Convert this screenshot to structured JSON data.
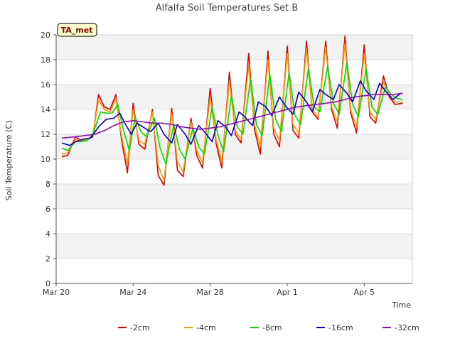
{
  "chart_data": {
    "type": "line",
    "title": "Alfalfa Soil Temperatures Set B",
    "xlabel": "Time",
    "ylabel": "Soil Temperature (C)",
    "badge": "TA_met",
    "xlim_days": [
      0,
      18.5
    ],
    "ylim": [
      0,
      20
    ],
    "y_ticks": [
      0,
      2,
      4,
      6,
      8,
      10,
      12,
      14,
      16,
      18,
      20
    ],
    "x_ticks": [
      {
        "day": 0,
        "label": "Mar 20"
      },
      {
        "day": 4,
        "label": "Mar 24"
      },
      {
        "day": 8,
        "label": "Mar 28"
      },
      {
        "day": 12,
        "label": "Apr 1"
      },
      {
        "day": 16,
        "label": "Apr 5"
      }
    ],
    "grid": "horizontal bands",
    "legend_position": "bottom",
    "series": [
      {
        "name": "-2cm",
        "color": "#dd0000",
        "x": [
          0.3,
          0.6,
          1.0,
          1.3,
          1.6,
          1.9,
          2.2,
          2.5,
          2.8,
          3.1,
          3.4,
          3.7,
          4.0,
          4.3,
          4.6,
          5.0,
          5.3,
          5.6,
          6.0,
          6.3,
          6.6,
          7.0,
          7.3,
          7.6,
          8.0,
          8.3,
          8.6,
          9.0,
          9.3,
          9.6,
          10.0,
          10.3,
          10.6,
          11.0,
          11.3,
          11.6,
          12.0,
          12.3,
          12.6,
          13.0,
          13.3,
          13.6,
          14.0,
          14.3,
          14.6,
          15.0,
          15.3,
          15.6,
          16.0,
          16.3,
          16.6,
          17.0,
          17.3,
          17.6,
          18.0
        ],
        "y": [
          10.2,
          10.3,
          11.8,
          11.5,
          11.6,
          11.8,
          15.2,
          14.2,
          14.0,
          15.2,
          11.5,
          8.9,
          14.5,
          11.2,
          10.8,
          14.0,
          8.7,
          7.9,
          14.1,
          9.1,
          8.6,
          13.3,
          10.3,
          9.3,
          15.7,
          11.3,
          9.3,
          17.0,
          12.0,
          11.3,
          18.5,
          12.4,
          10.4,
          18.7,
          12.0,
          11.0,
          19.1,
          12.3,
          11.7,
          19.5,
          13.8,
          13.2,
          19.5,
          14.0,
          12.5,
          19.9,
          13.7,
          12.1,
          19.2,
          13.4,
          12.9,
          16.7,
          15.0,
          14.4,
          14.5
        ]
      },
      {
        "name": "-4cm",
        "color": "#ff9900",
        "x": [
          0.3,
          0.6,
          1.0,
          1.3,
          1.6,
          1.9,
          2.2,
          2.5,
          2.8,
          3.1,
          3.4,
          3.7,
          4.0,
          4.3,
          4.6,
          5.0,
          5.3,
          5.6,
          6.0,
          6.3,
          6.6,
          7.0,
          7.3,
          7.6,
          8.0,
          8.3,
          8.6,
          9.0,
          9.3,
          9.6,
          10.0,
          10.3,
          10.6,
          11.0,
          11.3,
          11.6,
          12.0,
          12.3,
          12.6,
          13.0,
          13.3,
          13.6,
          14.0,
          14.3,
          14.6,
          15.0,
          15.3,
          15.6,
          16.0,
          16.3,
          16.6,
          17.0,
          17.3,
          17.6,
          18.0
        ],
        "y": [
          10.4,
          10.5,
          11.6,
          11.5,
          11.6,
          11.9,
          14.8,
          14.0,
          13.8,
          14.9,
          11.8,
          9.6,
          14.0,
          11.5,
          11.2,
          13.8,
          9.5,
          8.3,
          13.7,
          9.8,
          9.0,
          13.0,
          10.7,
          9.7,
          15.0,
          11.6,
          9.8,
          16.3,
          12.3,
          11.6,
          17.6,
          12.8,
          11.0,
          18.0,
          12.5,
          11.5,
          18.5,
          12.8,
          12.1,
          18.9,
          14.0,
          13.4,
          19.0,
          14.2,
          13.0,
          19.3,
          14.0,
          12.6,
          18.5,
          13.8,
          13.2,
          16.2,
          15.2,
          14.6,
          14.6
        ]
      },
      {
        "name": "-8cm",
        "color": "#00dd00",
        "x": [
          0.3,
          0.6,
          1.0,
          1.3,
          1.6,
          1.9,
          2.3,
          2.6,
          2.9,
          3.2,
          3.5,
          3.8,
          4.1,
          4.4,
          4.7,
          5.1,
          5.4,
          5.7,
          6.1,
          6.4,
          6.7,
          7.1,
          7.4,
          7.7,
          8.1,
          8.4,
          8.7,
          9.1,
          9.4,
          9.7,
          10.1,
          10.4,
          10.7,
          11.1,
          11.4,
          11.7,
          12.1,
          12.4,
          12.7,
          13.1,
          13.4,
          13.7,
          14.1,
          14.4,
          14.7,
          15.1,
          15.4,
          15.7,
          16.1,
          16.4,
          16.7,
          17.1,
          17.4,
          17.7,
          18.0
        ],
        "y": [
          10.9,
          10.7,
          11.4,
          11.4,
          11.5,
          12.0,
          13.8,
          13.7,
          13.7,
          14.4,
          12.3,
          10.7,
          13.4,
          12.2,
          11.8,
          13.3,
          10.9,
          9.6,
          12.8,
          10.8,
          10.0,
          12.5,
          11.0,
          10.4,
          14.2,
          11.9,
          10.6,
          15.1,
          12.6,
          12.0,
          16.5,
          12.8,
          11.9,
          16.8,
          13.2,
          12.2,
          17.0,
          13.5,
          12.8,
          17.3,
          14.2,
          13.8,
          17.5,
          14.5,
          13.6,
          17.8,
          14.4,
          13.4,
          17.3,
          14.2,
          13.6,
          15.8,
          15.2,
          14.9,
          14.8
        ]
      },
      {
        "name": "-16cm",
        "color": "#0000cc",
        "x": [
          0.3,
          0.7,
          1.0,
          1.4,
          1.8,
          2.2,
          2.6,
          3.0,
          3.3,
          3.6,
          3.9,
          4.2,
          4.6,
          4.9,
          5.3,
          5.6,
          6.0,
          6.3,
          6.7,
          7.0,
          7.4,
          7.7,
          8.1,
          8.4,
          8.8,
          9.1,
          9.5,
          9.8,
          10.2,
          10.5,
          10.9,
          11.2,
          11.6,
          11.9,
          12.3,
          12.6,
          13.0,
          13.3,
          13.7,
          14.0,
          14.4,
          14.7,
          15.1,
          15.4,
          15.8,
          16.1,
          16.5,
          16.8,
          17.2,
          17.5,
          17.9
        ],
        "y": [
          11.3,
          11.1,
          11.4,
          11.6,
          11.7,
          12.6,
          13.2,
          13.3,
          13.7,
          12.8,
          12.0,
          12.9,
          12.5,
          12.2,
          12.9,
          12.0,
          11.3,
          12.8,
          12.0,
          11.2,
          12.7,
          12.2,
          11.4,
          13.1,
          12.6,
          11.9,
          13.8,
          13.4,
          12.7,
          14.6,
          14.2,
          13.5,
          15.0,
          14.3,
          13.6,
          15.4,
          14.6,
          13.8,
          15.6,
          15.2,
          14.8,
          16.0,
          15.3,
          14.6,
          16.3,
          15.5,
          14.8,
          16.1,
          15.3,
          14.8,
          15.3
        ]
      },
      {
        "name": "-32cm",
        "color": "#9900cc",
        "x": [
          0.3,
          1.0,
          2.0,
          2.5,
          3.0,
          3.5,
          4.0,
          4.5,
          5.0,
          5.5,
          6.0,
          6.5,
          7.0,
          7.5,
          8.0,
          8.5,
          9.0,
          9.5,
          10.0,
          10.5,
          11.0,
          11.5,
          12.0,
          12.5,
          13.0,
          13.5,
          14.0,
          14.5,
          15.0,
          15.5,
          16.0,
          16.5,
          17.0,
          17.5,
          18.0
        ],
        "y": [
          11.7,
          11.8,
          12.0,
          12.3,
          12.7,
          13.0,
          13.1,
          13.0,
          12.9,
          12.9,
          12.8,
          12.6,
          12.5,
          12.4,
          12.5,
          12.6,
          12.8,
          13.0,
          13.2,
          13.4,
          13.6,
          13.8,
          14.0,
          14.2,
          14.3,
          14.4,
          14.5,
          14.6,
          14.8,
          15.0,
          15.1,
          15.2,
          15.2,
          15.2,
          15.3
        ]
      }
    ]
  }
}
